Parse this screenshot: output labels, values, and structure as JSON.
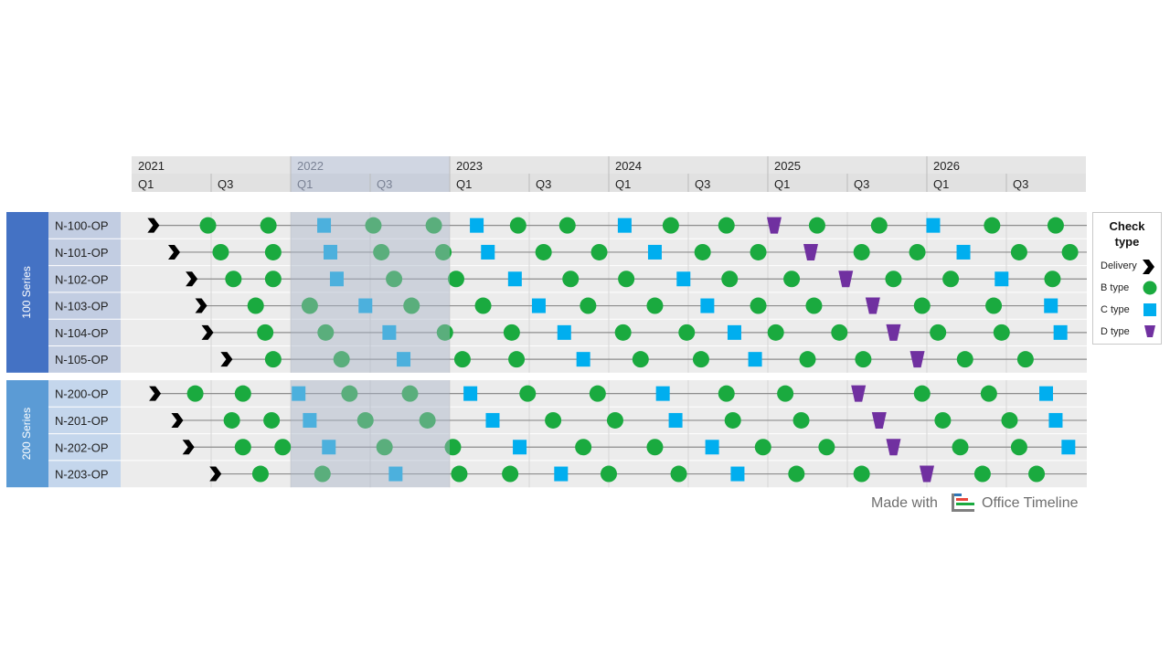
{
  "chart_data": {
    "type": "timeline",
    "years": [
      "2021",
      "2022",
      "2023",
      "2024",
      "2025",
      "2026"
    ],
    "quarter_labels": [
      "Q1",
      "Q3"
    ],
    "highlighted_year": "2022",
    "groups": [
      {
        "label": "100 Series",
        "color": "#4472c4",
        "rows": [
          "N-100-OP",
          "N-101-OP",
          "N-102-OP",
          "N-103-OP",
          "N-104-OP",
          "N-105-OP"
        ]
      },
      {
        "label": "200 Series",
        "color": "#5b9bd5",
        "rows": [
          "N-200-OP",
          "N-201-OP",
          "N-202-OP",
          "N-203-OP"
        ]
      }
    ],
    "x_start": "2021 Q1",
    "x_end": "2026",
    "marker_colors": {
      "Delivery": "#000000",
      "B type": "#1aaa3f",
      "C type": "#00aeef",
      "D type": "#7030a0"
    },
    "events": [
      [
        [
          "Delivery",
          2021.14
        ],
        [
          "B type",
          2021.48
        ],
        [
          "B type",
          2021.86
        ],
        [
          "C type",
          2022.21
        ],
        [
          "B type",
          2022.52
        ],
        [
          "B type",
          2022.9
        ],
        [
          "C type",
          2023.17
        ],
        [
          "B type",
          2023.43
        ],
        [
          "B type",
          2023.74
        ],
        [
          "C type",
          2024.1
        ],
        [
          "B type",
          2024.39
        ],
        [
          "B type",
          2024.74
        ],
        [
          "D type",
          2025.04
        ],
        [
          "B type",
          2025.31
        ],
        [
          "B type",
          2025.7
        ],
        [
          "C type",
          2026.04
        ],
        [
          "B type",
          2026.41
        ],
        [
          "B type",
          2026.81
        ]
      ],
      [
        [
          "Delivery",
          2021.27
        ],
        [
          "B type",
          2021.56
        ],
        [
          "B type",
          2021.89
        ],
        [
          "C type",
          2022.25
        ],
        [
          "B type",
          2022.57
        ],
        [
          "B type",
          2022.96
        ],
        [
          "C type",
          2023.24
        ],
        [
          "B type",
          2023.59
        ],
        [
          "B type",
          2023.94
        ],
        [
          "C type",
          2024.29
        ],
        [
          "B type",
          2024.59
        ],
        [
          "B type",
          2024.94
        ],
        [
          "D type",
          2025.27
        ],
        [
          "B type",
          2025.59
        ],
        [
          "B type",
          2025.94
        ],
        [
          "C type",
          2026.23
        ],
        [
          "B type",
          2026.58
        ],
        [
          "B type",
          2026.9
        ]
      ],
      [
        [
          "Delivery",
          2021.38
        ],
        [
          "B type",
          2021.64
        ],
        [
          "B type",
          2021.89
        ],
        [
          "C type",
          2022.29
        ],
        [
          "B type",
          2022.65
        ],
        [
          "B type",
          2023.04
        ],
        [
          "C type",
          2023.41
        ],
        [
          "B type",
          2023.76
        ],
        [
          "B type",
          2024.11
        ],
        [
          "C type",
          2024.47
        ],
        [
          "B type",
          2024.76
        ],
        [
          "B type",
          2025.15
        ],
        [
          "D type",
          2025.49
        ],
        [
          "B type",
          2025.79
        ],
        [
          "B type",
          2026.15
        ],
        [
          "C type",
          2026.47
        ],
        [
          "B type",
          2026.79
        ]
      ],
      [
        [
          "Delivery",
          2021.44
        ],
        [
          "B type",
          2021.78
        ],
        [
          "B type",
          2022.12
        ],
        [
          "C type",
          2022.47
        ],
        [
          "B type",
          2022.76
        ],
        [
          "B type",
          2023.21
        ],
        [
          "C type",
          2023.56
        ],
        [
          "B type",
          2023.87
        ],
        [
          "B type",
          2024.29
        ],
        [
          "C type",
          2024.62
        ],
        [
          "B type",
          2024.94
        ],
        [
          "B type",
          2025.29
        ],
        [
          "D type",
          2025.66
        ],
        [
          "B type",
          2025.97
        ],
        [
          "B type",
          2026.42
        ],
        [
          "C type",
          2026.78
        ]
      ],
      [
        [
          "Delivery",
          2021.48
        ],
        [
          "B type",
          2021.84
        ],
        [
          "B type",
          2022.22
        ],
        [
          "C type",
          2022.62
        ],
        [
          "B type",
          2022.97
        ],
        [
          "B type",
          2023.39
        ],
        [
          "C type",
          2023.72
        ],
        [
          "B type",
          2024.09
        ],
        [
          "B type",
          2024.49
        ],
        [
          "C type",
          2024.79
        ],
        [
          "B type",
          2025.05
        ],
        [
          "B type",
          2025.45
        ],
        [
          "D type",
          2025.79
        ],
        [
          "B type",
          2026.07
        ],
        [
          "B type",
          2026.47
        ],
        [
          "C type",
          2026.84
        ]
      ],
      [
        [
          "Delivery",
          2021.6
        ],
        [
          "B type",
          2021.89
        ],
        [
          "B type",
          2022.32
        ],
        [
          "C type",
          2022.71
        ],
        [
          "B type",
          2023.08
        ],
        [
          "B type",
          2023.42
        ],
        [
          "C type",
          2023.84
        ],
        [
          "B type",
          2024.2
        ],
        [
          "B type",
          2024.58
        ],
        [
          "C type",
          2024.92
        ],
        [
          "B type",
          2025.25
        ],
        [
          "B type",
          2025.6
        ],
        [
          "D type",
          2025.94
        ],
        [
          "B type",
          2026.24
        ],
        [
          "B type",
          2026.62
        ]
      ],
      [
        [
          "Delivery",
          2021.15
        ],
        [
          "B type",
          2021.4
        ],
        [
          "B type",
          2021.7
        ],
        [
          "C type",
          2022.05
        ],
        [
          "B type",
          2022.37
        ],
        [
          "B type",
          2022.75
        ],
        [
          "C type",
          2023.13
        ],
        [
          "B type",
          2023.49
        ],
        [
          "B type",
          2023.93
        ],
        [
          "C type",
          2024.34
        ],
        [
          "B type",
          2024.74
        ],
        [
          "B type",
          2025.11
        ],
        [
          "D type",
          2025.57
        ],
        [
          "B type",
          2025.97
        ],
        [
          "B type",
          2026.39
        ],
        [
          "C type",
          2026.75
        ]
      ],
      [
        [
          "Delivery",
          2021.29
        ],
        [
          "B type",
          2021.63
        ],
        [
          "B type",
          2021.88
        ],
        [
          "C type",
          2022.12
        ],
        [
          "B type",
          2022.47
        ],
        [
          "B type",
          2022.86
        ],
        [
          "C type",
          2023.27
        ],
        [
          "B type",
          2023.65
        ],
        [
          "B type",
          2024.04
        ],
        [
          "C type",
          2024.42
        ],
        [
          "B type",
          2024.78
        ],
        [
          "B type",
          2025.21
        ],
        [
          "D type",
          2025.7
        ],
        [
          "B type",
          2026.1
        ],
        [
          "B type",
          2026.52
        ],
        [
          "C type",
          2026.81
        ]
      ],
      [
        [
          "Delivery",
          2021.36
        ],
        [
          "B type",
          2021.7
        ],
        [
          "B type",
          2021.95
        ],
        [
          "C type",
          2022.24
        ],
        [
          "B type",
          2022.59
        ],
        [
          "B type",
          2023.02
        ],
        [
          "C type",
          2023.44
        ],
        [
          "B type",
          2023.84
        ],
        [
          "B type",
          2024.29
        ],
        [
          "C type",
          2024.65
        ],
        [
          "B type",
          2024.97
        ],
        [
          "B type",
          2025.37
        ],
        [
          "D type",
          2025.79
        ],
        [
          "B type",
          2026.21
        ],
        [
          "B type",
          2026.58
        ],
        [
          "C type",
          2026.89
        ]
      ],
      [
        [
          "Delivery",
          2021.53
        ],
        [
          "B type",
          2021.81
        ],
        [
          "B type",
          2022.2
        ],
        [
          "C type",
          2022.66
        ],
        [
          "B type",
          2023.06
        ],
        [
          "B type",
          2023.38
        ],
        [
          "C type",
          2023.7
        ],
        [
          "B type",
          2024.0
        ],
        [
          "B type",
          2024.44
        ],
        [
          "C type",
          2024.81
        ],
        [
          "B type",
          2025.18
        ],
        [
          "B type",
          2025.59
        ],
        [
          "D type",
          2026.0
        ],
        [
          "B type",
          2026.35
        ],
        [
          "B type",
          2026.69
        ]
      ]
    ]
  },
  "legend": {
    "title_line1": "Check",
    "title_line2": "type",
    "items": [
      "Delivery",
      "B type",
      "C type",
      "D type"
    ]
  },
  "watermark": {
    "made_with": "Made with",
    "brand": "Office Timeline"
  }
}
